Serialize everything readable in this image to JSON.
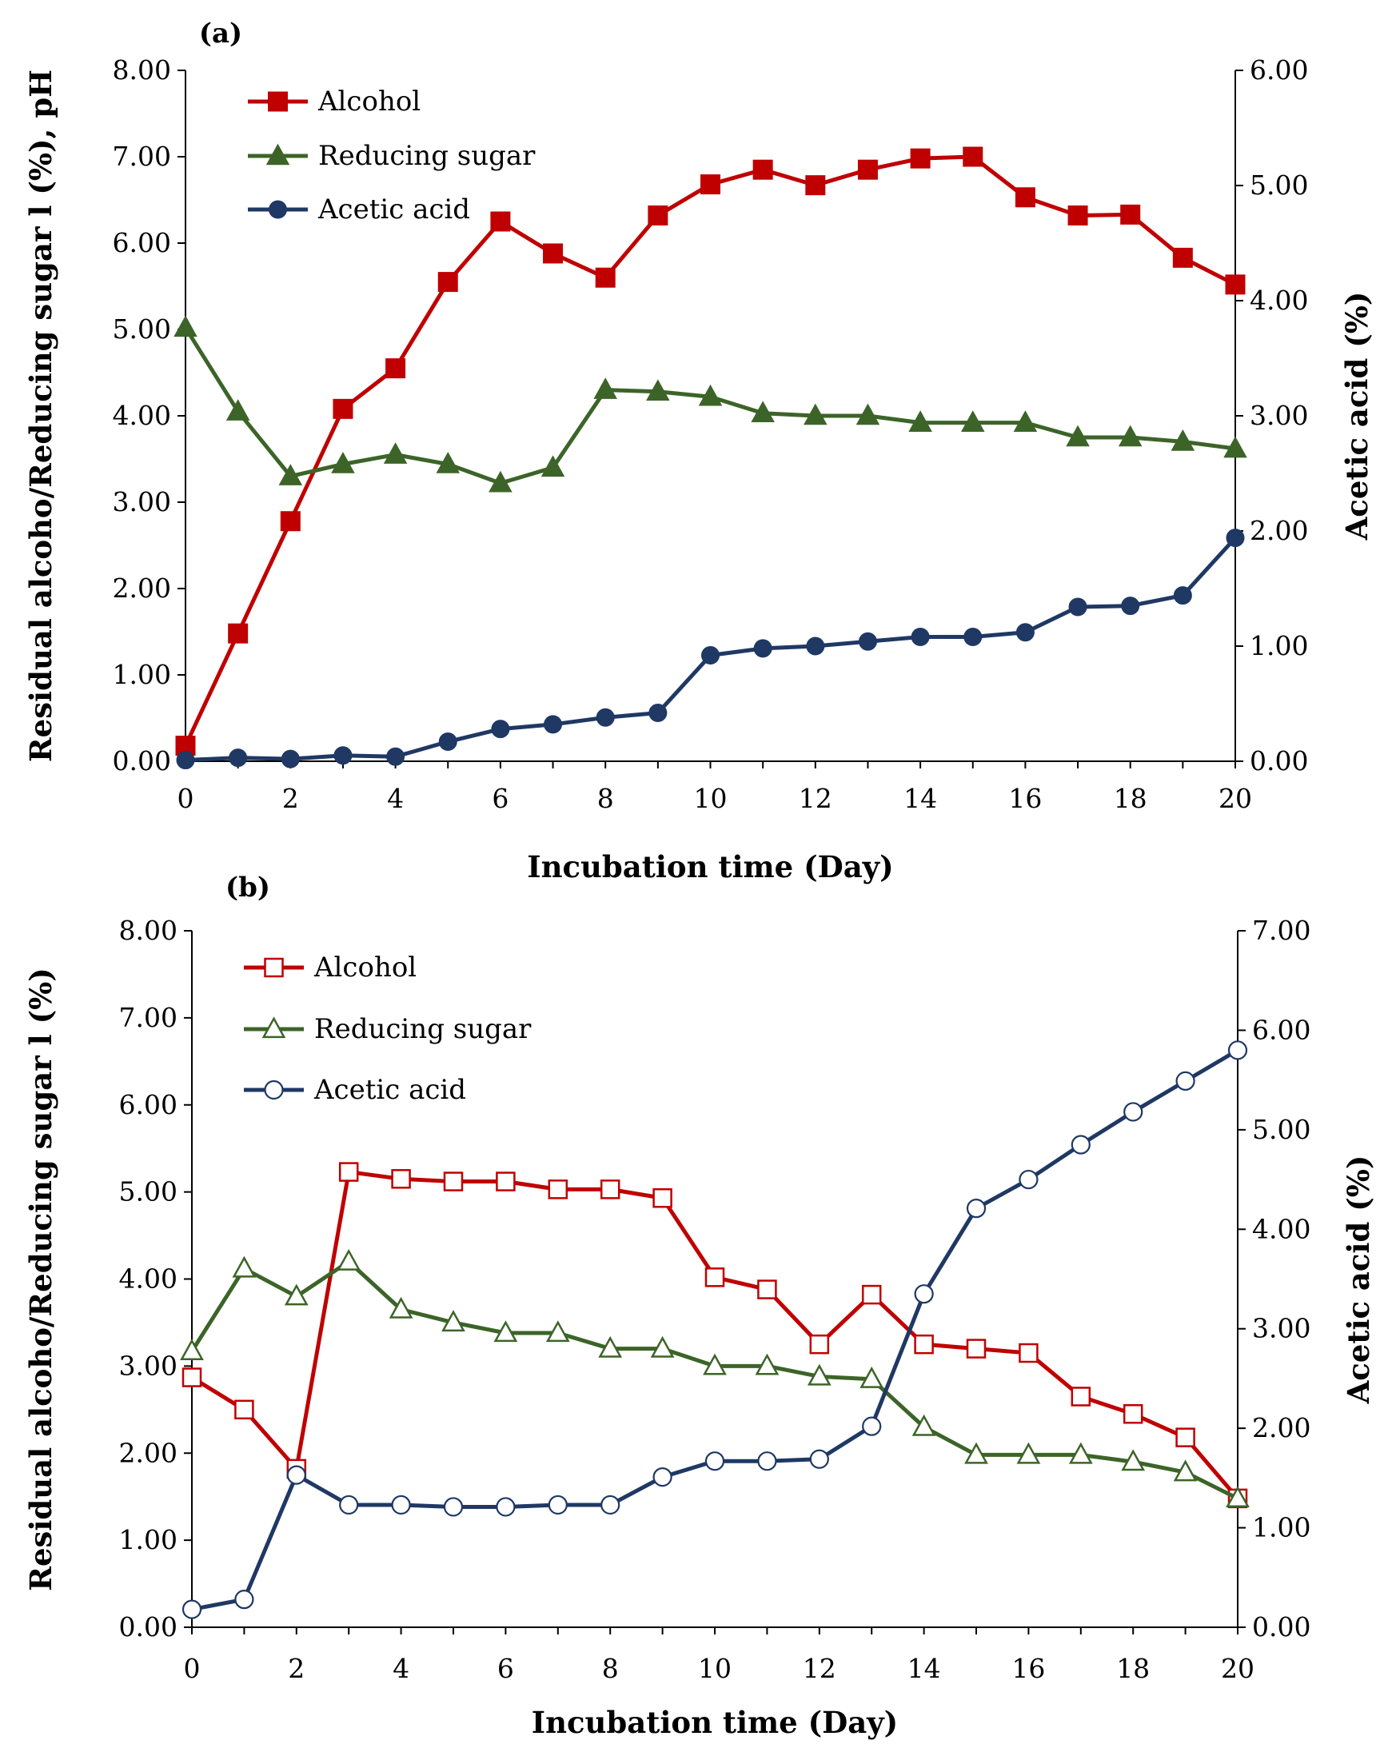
{
  "chart_data": [
    {
      "type": "line",
      "panel_label": "(a)",
      "xlabel": "Incubation time (Day)",
      "ylabel": "Residual alcoho/Reducing sugar l (%), pH",
      "y2label": "Acetic acid (%)",
      "x": [
        0,
        1,
        2,
        3,
        4,
        5,
        6,
        7,
        8,
        9,
        10,
        11,
        12,
        13,
        14,
        15,
        16,
        17,
        18,
        19,
        20
      ],
      "xlim": [
        0,
        20
      ],
      "xticks": [
        "0",
        "2",
        "4",
        "6",
        "8",
        "10",
        "12",
        "14",
        "16",
        "18",
        "20"
      ],
      "ylim": [
        0,
        8
      ],
      "yticks": [
        "0.00",
        "1.00",
        "2.00",
        "3.00",
        "4.00",
        "5.00",
        "6.00",
        "7.00",
        "8.00"
      ],
      "y2lim": [
        0,
        6
      ],
      "y2ticks": [
        "0.00",
        "1.00",
        "2.00",
        "3.00",
        "4.00",
        "5.00",
        "6.00"
      ],
      "legend_position": "top-left",
      "grid": false,
      "series": [
        {
          "name": "Alcohol",
          "axis": "left",
          "color": "#c00000",
          "marker": "square-filled",
          "values": [
            0.18,
            1.48,
            2.78,
            4.08,
            4.55,
            5.55,
            6.25,
            5.88,
            5.6,
            6.32,
            6.68,
            6.85,
            6.67,
            6.85,
            6.98,
            7.0,
            6.53,
            6.32,
            6.33,
            5.83,
            5.52
          ]
        },
        {
          "name": "Reducing sugar",
          "axis": "left",
          "color": "#3c6428",
          "marker": "triangle-filled",
          "values": [
            5.02,
            4.05,
            3.3,
            3.44,
            3.55,
            3.44,
            3.22,
            3.4,
            4.3,
            4.28,
            4.22,
            4.03,
            4.0,
            4.0,
            3.92,
            3.92,
            3.92,
            3.75,
            3.75,
            3.7,
            3.62
          ]
        },
        {
          "name": "Acetic acid",
          "axis": "right",
          "color": "#1f3864",
          "marker": "circle-filled",
          "values": [
            0.01,
            0.03,
            0.02,
            0.05,
            0.04,
            0.17,
            0.28,
            0.32,
            0.38,
            0.42,
            0.92,
            0.98,
            1.0,
            1.04,
            1.08,
            1.08,
            1.12,
            1.34,
            1.35,
            1.44,
            1.94
          ]
        }
      ]
    },
    {
      "type": "line",
      "panel_label": "(b)",
      "xlabel": "Incubation time (Day)",
      "ylabel": "Residual alcoho/Reducing sugar l (%)",
      "y2label": "Acetic acid (%)",
      "x": [
        0,
        1,
        2,
        3,
        4,
        5,
        6,
        7,
        8,
        9,
        10,
        11,
        12,
        13,
        14,
        15,
        16,
        17,
        18,
        19,
        20
      ],
      "xlim": [
        0,
        20
      ],
      "xticks": [
        "0",
        "2",
        "4",
        "6",
        "8",
        "10",
        "12",
        "14",
        "16",
        "18",
        "20"
      ],
      "ylim": [
        0,
        8
      ],
      "yticks": [
        "0.00",
        "1.00",
        "2.00",
        "3.00",
        "4.00",
        "5.00",
        "6.00",
        "7.00",
        "8.00"
      ],
      "y2lim": [
        0,
        7
      ],
      "y2ticks": [
        "0.00",
        "1.00",
        "2.00",
        "3.00",
        "4.00",
        "5.00",
        "6.00",
        "7.00"
      ],
      "legend_position": "top-left",
      "grid": false,
      "series": [
        {
          "name": "Alcohol",
          "axis": "left",
          "color": "#c00000",
          "marker": "square-open",
          "values": [
            2.87,
            2.5,
            1.82,
            5.23,
            5.15,
            5.12,
            5.12,
            5.03,
            5.03,
            4.93,
            4.02,
            3.88,
            3.25,
            3.82,
            3.25,
            3.2,
            3.15,
            2.65,
            2.45,
            2.18,
            1.48
          ]
        },
        {
          "name": "Reducing sugar",
          "axis": "left",
          "color": "#3c6428",
          "marker": "triangle-open",
          "values": [
            3.17,
            4.12,
            3.8,
            4.2,
            3.65,
            3.5,
            3.38,
            3.38,
            3.2,
            3.2,
            3.0,
            3.0,
            2.88,
            2.85,
            2.3,
            1.98,
            1.98,
            1.98,
            1.9,
            1.78,
            1.48
          ]
        },
        {
          "name": "Acetic acid",
          "axis": "right",
          "color": "#1f3864",
          "marker": "circle-open",
          "values": [
            0.18,
            0.28,
            1.53,
            1.23,
            1.23,
            1.21,
            1.21,
            1.23,
            1.23,
            1.51,
            1.67,
            1.67,
            1.69,
            2.02,
            3.35,
            4.21,
            4.5,
            4.85,
            5.18,
            5.49,
            5.8
          ]
        }
      ]
    }
  ]
}
